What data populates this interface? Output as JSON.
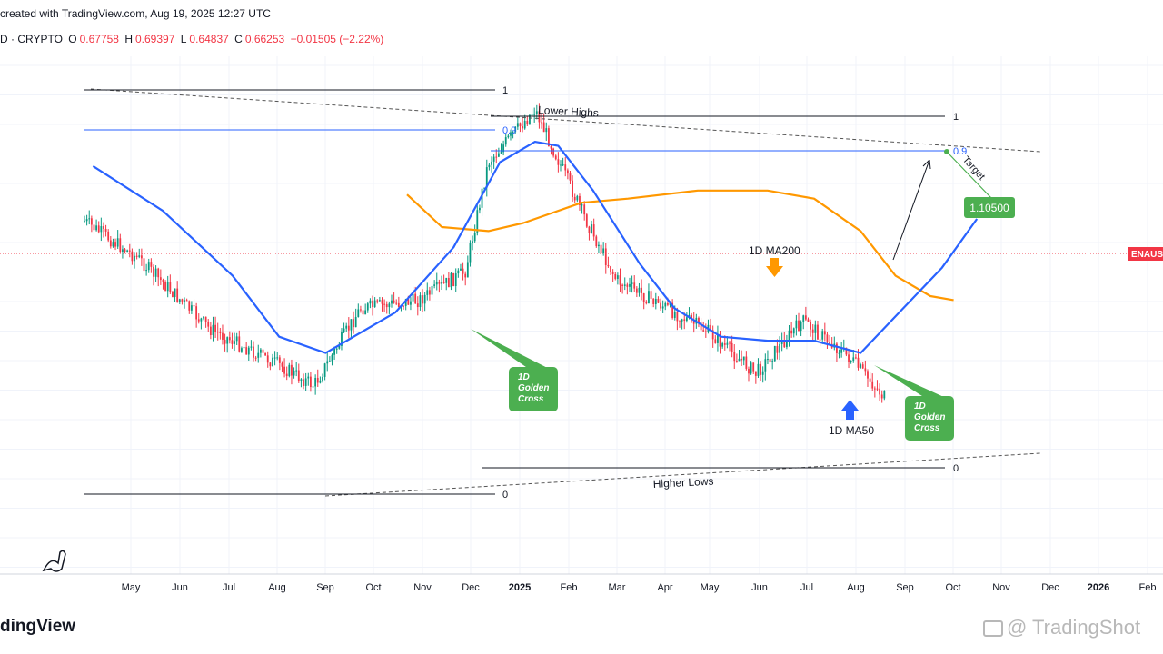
{
  "header": {
    "created": "created with TradingView.com, Aug 19, 2025 12:27 UTC",
    "symbol": "D · CRYPTO",
    "open_label": "O",
    "open": "0.67758",
    "high_label": "H",
    "high": "0.69397",
    "low_label": "L",
    "low": "0.64837",
    "close_label": "C",
    "close": "0.66253",
    "change": "−0.01505 (−2.22%)"
  },
  "colors": {
    "up": "#089981",
    "down": "#f23645",
    "ma50": "#2962ff",
    "ma200": "#ff9800",
    "green_label": "#4caf50",
    "fib": "#2962ff",
    "grid": "#f0f3fa"
  },
  "chart_data": {
    "type": "candlestick",
    "timeframe": "1D",
    "x_ticks": [
      "May",
      "Jun",
      "Jul",
      "Aug",
      "Sep",
      "Oct",
      "Nov",
      "Dec",
      "2025",
      "Feb",
      "Mar",
      "Apr",
      "May",
      "Jun",
      "Jul",
      "Aug",
      "Sep",
      "Oct",
      "Nov",
      "Dec",
      "2026",
      "Feb"
    ],
    "price_scale": "hidden (cropped)",
    "price_tag": "ENAUS",
    "close_path": [
      [
        0.02,
        0.22
      ],
      [
        0.12,
        0.42
      ],
      [
        0.18,
        0.59
      ],
      [
        0.24,
        0.68
      ],
      [
        0.27,
        0.73
      ],
      [
        0.31,
        0.54
      ],
      [
        0.36,
        0.52
      ],
      [
        0.4,
        0.45
      ],
      [
        0.42,
        0.18
      ],
      [
        0.46,
        0.05
      ],
      [
        0.5,
        0.3
      ],
      [
        0.53,
        0.47
      ],
      [
        0.58,
        0.55
      ],
      [
        0.61,
        0.6
      ],
      [
        0.65,
        0.7
      ],
      [
        0.69,
        0.57
      ],
      [
        0.73,
        0.66
      ],
      [
        0.77,
        0.79
      ],
      [
        0.8,
        0.79
      ],
      [
        0.82,
        0.48
      ],
      [
        0.84,
        0.27
      ],
      [
        0.86,
        0.35
      ]
    ],
    "ma50_path": [
      [
        0.08,
        0.19
      ],
      [
        0.14,
        0.3
      ],
      [
        0.2,
        0.46
      ],
      [
        0.24,
        0.61
      ],
      [
        0.28,
        0.65
      ],
      [
        0.34,
        0.55
      ],
      [
        0.39,
        0.39
      ],
      [
        0.43,
        0.18
      ],
      [
        0.46,
        0.13
      ],
      [
        0.48,
        0.14
      ],
      [
        0.51,
        0.25
      ],
      [
        0.55,
        0.43
      ],
      [
        0.58,
        0.54
      ],
      [
        0.62,
        0.61
      ],
      [
        0.66,
        0.62
      ],
      [
        0.7,
        0.62
      ],
      [
        0.74,
        0.65
      ],
      [
        0.77,
        0.56
      ],
      [
        0.81,
        0.44
      ],
      [
        0.84,
        0.32
      ]
    ],
    "ma200_path": [
      [
        0.35,
        0.26
      ],
      [
        0.38,
        0.34
      ],
      [
        0.42,
        0.35
      ],
      [
        0.45,
        0.33
      ],
      [
        0.5,
        0.28
      ],
      [
        0.54,
        0.27
      ],
      [
        0.6,
        0.25
      ],
      [
        0.66,
        0.25
      ],
      [
        0.7,
        0.27
      ],
      [
        0.74,
        0.35
      ],
      [
        0.77,
        0.46
      ],
      [
        0.8,
        0.51
      ],
      [
        0.82,
        0.52
      ]
    ],
    "annotations": {
      "lower_highs": "Lower Highs",
      "higher_lows": "Higher Lows",
      "fib_1": "1",
      "fib_09": "0.9",
      "fib_0": "0",
      "target": "Target",
      "target_value": "1.10500",
      "ma200_label": "1D MA200",
      "ma50_label": "1D MA50",
      "golden_cross_1": [
        "1D",
        "Golden",
        "Cross"
      ],
      "golden_cross_2": [
        "1D",
        "Golden",
        "Cross"
      ]
    }
  },
  "footer": {
    "brand": "dingView",
    "watermark": "@ TradingShot"
  }
}
